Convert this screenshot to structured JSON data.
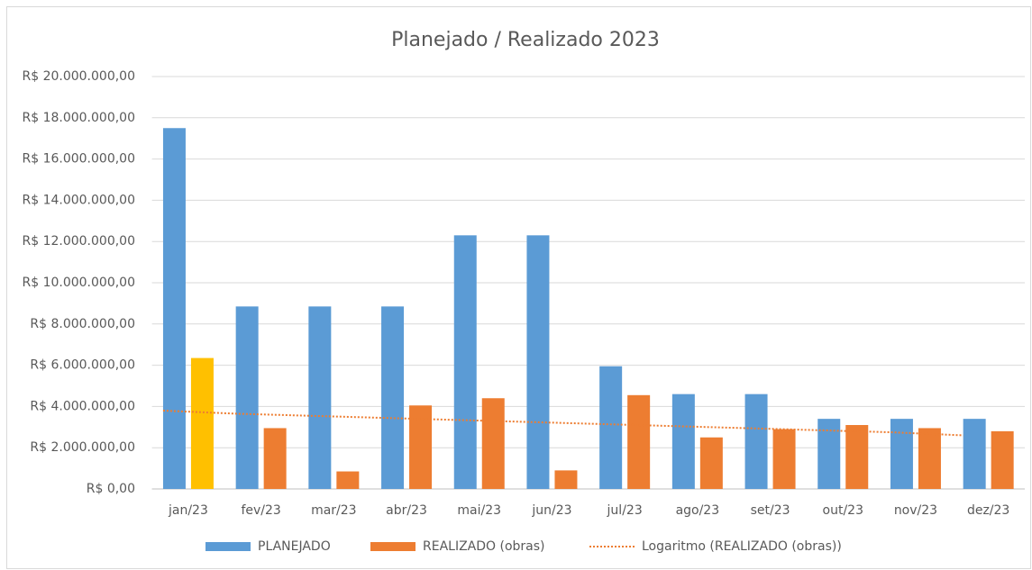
{
  "chart_data": {
    "type": "bar",
    "title": "Planejado / Realizado 2023",
    "categories": [
      "jan/23",
      "fev/23",
      "mar/23",
      "abr/23",
      "mai/23",
      "jun/23",
      "jul/23",
      "ago/23",
      "set/23",
      "out/23",
      "nov/23",
      "dez/23"
    ],
    "series": [
      {
        "name": "PLANEJADO",
        "color": "#5b9bd5",
        "values": [
          17500000,
          8850000,
          8850000,
          8850000,
          12300000,
          12300000,
          5950000,
          4600000,
          4600000,
          3400000,
          3400000,
          3400000
        ]
      },
      {
        "name": "REALIZADO (obras)",
        "color": "#ed7d31",
        "highlight_color": "#ffc000",
        "values": [
          6350000,
          2950000,
          850000,
          4050000,
          4400000,
          900000,
          4550000,
          2500000,
          2900000,
          3100000,
          2950000,
          2800000
        ]
      },
      {
        "name": "Logaritmo (REALIZADO (obras))",
        "type": "line",
        "color": "#ed7d31",
        "values": [
          3800000,
          3650000,
          3550000,
          3450000,
          3350000,
          3250000,
          3150000,
          3050000,
          2950000,
          2850000,
          2750000,
          2600000
        ]
      }
    ],
    "ylim": [
      0,
      20000000
    ],
    "yticks": [
      {
        "value": 0,
        "label": "R$ 0,00"
      },
      {
        "value": 2000000,
        "label": "R$ 2.000.000,00"
      },
      {
        "value": 4000000,
        "label": "R$ 4.000.000,00"
      },
      {
        "value": 6000000,
        "label": "R$ 6.000.000,00"
      },
      {
        "value": 8000000,
        "label": "R$ 8.000.000,00"
      },
      {
        "value": 10000000,
        "label": "R$ 10.000.000,00"
      },
      {
        "value": 12000000,
        "label": "R$ 12.000.000,00"
      },
      {
        "value": 14000000,
        "label": "R$ 14.000.000,00"
      },
      {
        "value": 16000000,
        "label": "R$ 16.000.000,00"
      },
      {
        "value": 18000000,
        "label": "R$ 18.000.000,00"
      },
      {
        "value": 20000000,
        "label": "R$ 20.000.000,00"
      }
    ],
    "grid": true,
    "legend": "bottom"
  }
}
